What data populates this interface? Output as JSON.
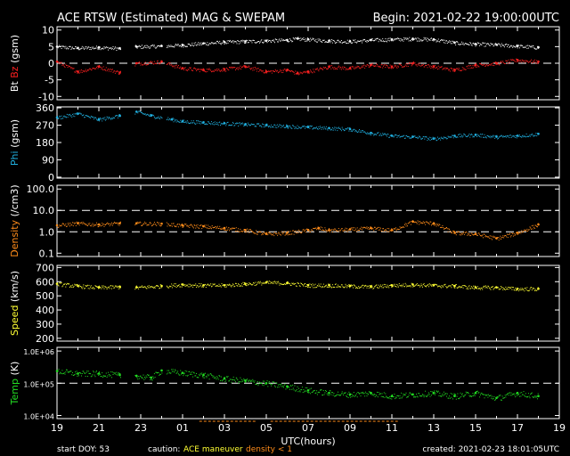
{
  "header": {
    "title": "ACE RTSW (Estimated) MAG & SWEPAM",
    "begin": "Begin: 2021-02-22 19:00:00UTC"
  },
  "footer": {
    "start_doy": "start DOY:  53",
    "caution_label": "caution:",
    "caution_maneuver": "ACE maneuver",
    "caution_density": "density < 1",
    "created": "created: 2021-02-23 18:01:05UTC"
  },
  "colors": {
    "bt": "#ffffff",
    "bz": "#ff2020",
    "phi": "#20b0e0",
    "density": "#ff8c1a",
    "speed": "#ffff33",
    "temp": "#22dd22",
    "maneuver": "#ffff33",
    "density_flag": "#ff8c1a"
  },
  "chart_data": {
    "type": "scatter",
    "x_label": "UTC(hours)",
    "x_ticks": [
      "19",
      "21",
      "23",
      "01",
      "03",
      "05",
      "07",
      "09",
      "11",
      "13",
      "15",
      "17",
      "19"
    ],
    "x_range_hours": [
      0,
      24
    ],
    "gaps_hours": [
      [
        3.05,
        3.7
      ],
      [
        5.0,
        5.2
      ]
    ],
    "panels": [
      {
        "id": "mag",
        "y_label_parts": [
          {
            "text": "Bt",
            "color": "#ffffff"
          },
          {
            "text": "Bz",
            "color": "#ff2020"
          },
          {
            "text": "(gsm)",
            "color": "#ffffff"
          }
        ],
        "y_ticks": [
          "10",
          "5",
          "0",
          "-5",
          "-10"
        ],
        "y_tick_values": [
          10,
          5,
          0,
          -5,
          -10
        ],
        "ylim": [
          -11,
          11
        ],
        "dashed_y": [
          0
        ],
        "series": [
          {
            "name": "Bt",
            "color": "#ffffff",
            "x": [
              0,
              1,
              2,
              3,
              3.8,
              5,
              6,
              7,
              8,
              9,
              10,
              11,
              11.5,
              12,
              13,
              14,
              15,
              16,
              17,
              18,
              19,
              20,
              21,
              22,
              23
            ],
            "y": [
              5,
              4.6,
              4.8,
              4.5,
              5,
              5.2,
              5.5,
              6,
              6.4,
              6.6,
              6.8,
              7,
              7.4,
              7.2,
              6.8,
              6.6,
              7,
              7.2,
              7.4,
              7.2,
              6.2,
              5.8,
              5.6,
              5.2,
              4.8
            ]
          },
          {
            "name": "Bz",
            "color": "#ff2020",
            "x": [
              0,
              1,
              2,
              3,
              3.8,
              5,
              6,
              7,
              8,
              9,
              10,
              11,
              11.5,
              12,
              13,
              14,
              15,
              16,
              17,
              18,
              19,
              20,
              21,
              22,
              23
            ],
            "y": [
              0.5,
              -2.5,
              -1,
              -2.8,
              0,
              0.5,
              -1.5,
              -2,
              -1.8,
              -1,
              -2.5,
              -2,
              -3,
              -2.5,
              -1,
              -1.5,
              -0.5,
              -1,
              0,
              -1,
              -2,
              -0.5,
              0,
              1,
              0.5
            ]
          }
        ]
      },
      {
        "id": "phi",
        "y_label_parts": [
          {
            "text": "Phi",
            "color": "#20b0e0"
          },
          {
            "text": "(gsm)",
            "color": "#ffffff"
          }
        ],
        "y_ticks": [
          "360",
          "270",
          "180",
          "90",
          "0"
        ],
        "y_tick_values": [
          360,
          270,
          180,
          90,
          0
        ],
        "ylim": [
          -5,
          365
        ],
        "dashed_y": [],
        "series": [
          {
            "name": "Phi",
            "color": "#20b0e0",
            "x": [
              0,
              1,
              2,
              3,
              3.8,
              4.5,
              5.5,
              6,
              7,
              8,
              9,
              10,
              11,
              12,
              13,
              14,
              15,
              16,
              17,
              18,
              19,
              20,
              21,
              22,
              23
            ],
            "y": [
              310,
              330,
              300,
              320,
              340,
              320,
              300,
              290,
              285,
              280,
              275,
              270,
              265,
              260,
              255,
              250,
              230,
              215,
              210,
              200,
              215,
              220,
              210,
              215,
              225
            ]
          }
        ]
      },
      {
        "id": "density",
        "y_label_parts": [
          {
            "text": "Density",
            "color": "#ff8c1a"
          },
          {
            "text": "(/cm3)",
            "color": "#ffffff"
          }
        ],
        "y_ticks": [
          "100.0",
          "10.0",
          "1.0",
          "0.1"
        ],
        "y_tick_values": [
          100,
          10,
          1,
          0.1
        ],
        "log": true,
        "ylim": [
          0.07,
          150
        ],
        "dashed_y": [
          10,
          1
        ],
        "series": [
          {
            "name": "Density",
            "color": "#ff8c1a",
            "x": [
              0,
              1,
              2,
              3,
              3.8,
              5,
              6,
              7,
              8,
              9,
              10,
              11,
              12,
              12.5,
              13,
              14,
              15,
              16,
              17,
              18,
              19,
              20,
              21,
              22,
              23
            ],
            "y": [
              2,
              2.5,
              2.2,
              2.5,
              2.5,
              2.4,
              2,
              1.8,
              1.5,
              1.2,
              0.8,
              0.9,
              1.2,
              1.5,
              1.2,
              1.3,
              1.5,
              1.2,
              3,
              2.5,
              0.9,
              0.8,
              0.5,
              0.9,
              2.2
            ]
          }
        ]
      },
      {
        "id": "speed",
        "y_label_parts": [
          {
            "text": "Speed",
            "color": "#ffff33"
          },
          {
            "text": "(km/s)",
            "color": "#ffffff"
          }
        ],
        "y_ticks": [
          "700",
          "600",
          "500",
          "400",
          "300",
          "200"
        ],
        "y_tick_values": [
          700,
          600,
          500,
          400,
          300,
          200
        ],
        "ylim": [
          180,
          715
        ],
        "dashed_y": [],
        "series": [
          {
            "name": "Speed",
            "color": "#ffff33",
            "x": [
              0,
              1,
              2,
              3,
              3.8,
              5,
              6,
              7,
              8,
              9,
              10,
              11,
              12,
              13,
              14,
              15,
              16,
              17,
              18,
              19,
              20,
              21,
              22,
              23
            ],
            "y": [
              585,
              570,
              560,
              565,
              560,
              570,
              580,
              575,
              575,
              585,
              595,
              590,
              575,
              575,
              570,
              565,
              575,
              580,
              575,
              570,
              560,
              560,
              550,
              550
            ]
          }
        ]
      },
      {
        "id": "temp",
        "y_label_parts": [
          {
            "text": "Temp",
            "color": "#22dd22"
          },
          {
            "text": "(K)",
            "color": "#ffffff"
          }
        ],
        "y_ticks": [
          "1.0E+06",
          "1.0E+05",
          "1.0E+04"
        ],
        "y_tick_values": [
          1000000,
          100000,
          10000
        ],
        "log": true,
        "ylim": [
          8000,
          1300000
        ],
        "dashed_y": [
          100000
        ],
        "series": [
          {
            "name": "Temp",
            "color": "#22dd22",
            "x": [
              0,
              1,
              2,
              3,
              3.8,
              4.5,
              5,
              6,
              7,
              8,
              9,
              10,
              11,
              12,
              13,
              14,
              15,
              16,
              17,
              18,
              19,
              20,
              21,
              22,
              23
            ],
            "y": [
              240000,
              200000,
              200000,
              180000,
              170000,
              150000,
              250000,
              210000,
              180000,
              140000,
              120000,
              100000,
              80000,
              60000,
              50000,
              45000,
              50000,
              40000,
              45000,
              50000,
              40000,
              50000,
              35000,
              50000,
              40000
            ]
          }
        ]
      }
    ]
  }
}
